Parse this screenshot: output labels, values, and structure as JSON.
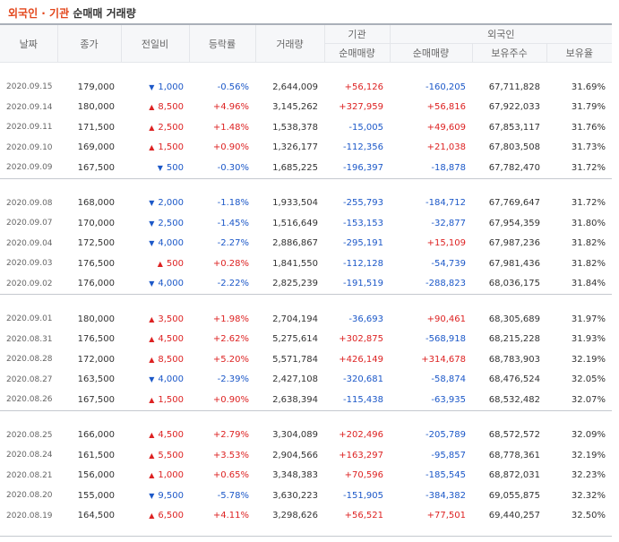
{
  "title": {
    "highlight": "외국인 · 기관",
    "rest": "순매매 거래량"
  },
  "headers": {
    "date": "날짜",
    "close": "종가",
    "change": "전일비",
    "rate": "등락률",
    "volume": "거래량",
    "institution": "기관",
    "foreign": "외국인",
    "inst_net": "순매매량",
    "foreign_net": "순매매량",
    "holdings": "보유주수",
    "holding_ratio": "보유율"
  },
  "colors": {
    "up": "#dd2222",
    "down": "#1c58c8",
    "accent": "#e3461b"
  },
  "groups": [
    [
      {
        "date": "2020.09.15",
        "close": "179,000",
        "dir": "down",
        "change": "1,000",
        "rate": "-0.56%",
        "volume": "2,644,009",
        "inst": "+56,126",
        "foreign": "-160,205",
        "holdings": "67,711,828",
        "ratio": "31.69%"
      },
      {
        "date": "2020.09.14",
        "close": "180,000",
        "dir": "up",
        "change": "8,500",
        "rate": "+4.96%",
        "volume": "3,145,262",
        "inst": "+327,959",
        "foreign": "+56,816",
        "holdings": "67,922,033",
        "ratio": "31.79%"
      },
      {
        "date": "2020.09.11",
        "close": "171,500",
        "dir": "up",
        "change": "2,500",
        "rate": "+1.48%",
        "volume": "1,538,378",
        "inst": "-15,005",
        "foreign": "+49,609",
        "holdings": "67,853,117",
        "ratio": "31.76%"
      },
      {
        "date": "2020.09.10",
        "close": "169,000",
        "dir": "up",
        "change": "1,500",
        "rate": "+0.90%",
        "volume": "1,326,177",
        "inst": "-112,356",
        "foreign": "+21,038",
        "holdings": "67,803,508",
        "ratio": "31.73%"
      },
      {
        "date": "2020.09.09",
        "close": "167,500",
        "dir": "down",
        "change": "500",
        "rate": "-0.30%",
        "volume": "1,685,225",
        "inst": "-196,397",
        "foreign": "-18,878",
        "holdings": "67,782,470",
        "ratio": "31.72%"
      }
    ],
    [
      {
        "date": "2020.09.08",
        "close": "168,000",
        "dir": "down",
        "change": "2,000",
        "rate": "-1.18%",
        "volume": "1,933,504",
        "inst": "-255,793",
        "foreign": "-184,712",
        "holdings": "67,769,647",
        "ratio": "31.72%"
      },
      {
        "date": "2020.09.07",
        "close": "170,000",
        "dir": "down",
        "change": "2,500",
        "rate": "-1.45%",
        "volume": "1,516,649",
        "inst": "-153,153",
        "foreign": "-32,877",
        "holdings": "67,954,359",
        "ratio": "31.80%"
      },
      {
        "date": "2020.09.04",
        "close": "172,500",
        "dir": "down",
        "change": "4,000",
        "rate": "-2.27%",
        "volume": "2,886,867",
        "inst": "-295,191",
        "foreign": "+15,109",
        "holdings": "67,987,236",
        "ratio": "31.82%"
      },
      {
        "date": "2020.09.03",
        "close": "176,500",
        "dir": "up",
        "change": "500",
        "rate": "+0.28%",
        "volume": "1,841,550",
        "inst": "-112,128",
        "foreign": "-54,739",
        "holdings": "67,981,436",
        "ratio": "31.82%"
      },
      {
        "date": "2020.09.02",
        "close": "176,000",
        "dir": "down",
        "change": "4,000",
        "rate": "-2.22%",
        "volume": "2,825,239",
        "inst": "-191,519",
        "foreign": "-288,823",
        "holdings": "68,036,175",
        "ratio": "31.84%"
      }
    ],
    [
      {
        "date": "2020.09.01",
        "close": "180,000",
        "dir": "up",
        "change": "3,500",
        "rate": "+1.98%",
        "volume": "2,704,194",
        "inst": "-36,693",
        "foreign": "+90,461",
        "holdings": "68,305,689",
        "ratio": "31.97%"
      },
      {
        "date": "2020.08.31",
        "close": "176,500",
        "dir": "up",
        "change": "4,500",
        "rate": "+2.62%",
        "volume": "5,275,614",
        "inst": "+302,875",
        "foreign": "-568,918",
        "holdings": "68,215,228",
        "ratio": "31.93%"
      },
      {
        "date": "2020.08.28",
        "close": "172,000",
        "dir": "up",
        "change": "8,500",
        "rate": "+5.20%",
        "volume": "5,571,784",
        "inst": "+426,149",
        "foreign": "+314,678",
        "holdings": "68,783,903",
        "ratio": "32.19%"
      },
      {
        "date": "2020.08.27",
        "close": "163,500",
        "dir": "down",
        "change": "4,000",
        "rate": "-2.39%",
        "volume": "2,427,108",
        "inst": "-320,681",
        "foreign": "-58,874",
        "holdings": "68,476,524",
        "ratio": "32.05%"
      },
      {
        "date": "2020.08.26",
        "close": "167,500",
        "dir": "up",
        "change": "1,500",
        "rate": "+0.90%",
        "volume": "2,638,394",
        "inst": "-115,438",
        "foreign": "-63,935",
        "holdings": "68,532,482",
        "ratio": "32.07%"
      }
    ],
    [
      {
        "date": "2020.08.25",
        "close": "166,000",
        "dir": "up",
        "change": "4,500",
        "rate": "+2.79%",
        "volume": "3,304,089",
        "inst": "+202,496",
        "foreign": "-205,789",
        "holdings": "68,572,572",
        "ratio": "32.09%"
      },
      {
        "date": "2020.08.24",
        "close": "161,500",
        "dir": "up",
        "change": "5,500",
        "rate": "+3.53%",
        "volume": "2,904,566",
        "inst": "+163,297",
        "foreign": "-95,857",
        "holdings": "68,778,361",
        "ratio": "32.19%"
      },
      {
        "date": "2020.08.21",
        "close": "156,000",
        "dir": "up",
        "change": "1,000",
        "rate": "+0.65%",
        "volume": "3,348,383",
        "inst": "+70,596",
        "foreign": "-185,545",
        "holdings": "68,872,031",
        "ratio": "32.23%"
      },
      {
        "date": "2020.08.20",
        "close": "155,000",
        "dir": "down",
        "change": "9,500",
        "rate": "-5.78%",
        "volume": "3,630,223",
        "inst": "-151,905",
        "foreign": "-384,382",
        "holdings": "69,055,875",
        "ratio": "32.32%"
      },
      {
        "date": "2020.08.19",
        "close": "164,500",
        "dir": "up",
        "change": "6,500",
        "rate": "+4.11%",
        "volume": "3,298,626",
        "inst": "+56,521",
        "foreign": "+77,501",
        "holdings": "69,440,257",
        "ratio": "32.50%"
      }
    ]
  ]
}
